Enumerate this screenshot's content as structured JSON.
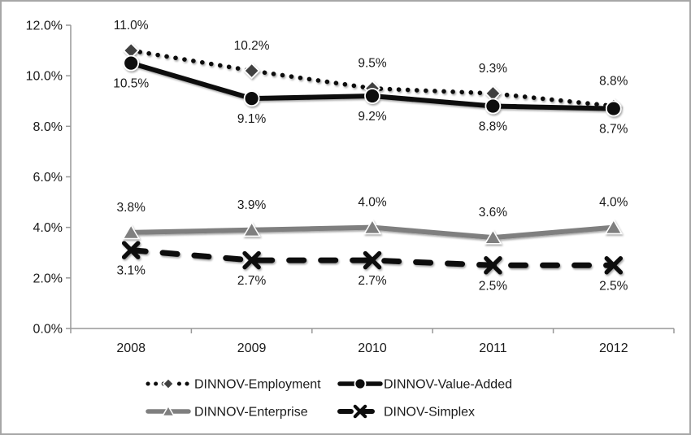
{
  "figure": {
    "background": "#ffffff",
    "border_color": "#a6a6a6",
    "axis_color": "#999999",
    "text_color": "#1a1a1a"
  },
  "chart_data": {
    "type": "line",
    "title": "",
    "xlabel": "",
    "ylabel": "",
    "grid": false,
    "categories": [
      "2008",
      "2009",
      "2010",
      "2011",
      "2012"
    ],
    "series": [
      {
        "name": "DINNOV-Employment",
        "values": [
          11.0,
          10.2,
          9.5,
          9.3,
          8.8
        ],
        "point_labels": [
          "11.0%",
          "10.2%",
          "9.5%",
          "9.3%",
          "8.8%"
        ],
        "label_position": "above",
        "color": "#0d0d0d",
        "line_style": "dotted",
        "marker": "diamond",
        "marker_color": "#404040"
      },
      {
        "name": "DINNOV-Value-Added",
        "values": [
          10.5,
          9.1,
          9.2,
          8.8,
          8.7
        ],
        "point_labels": [
          "10.5%",
          "9.1%",
          "9.2%",
          "8.8%",
          "8.7%"
        ],
        "label_position": "below",
        "color": "#0d0d0d",
        "line_style": "solid",
        "marker": "circle",
        "marker_color": "#0d0d0d"
      },
      {
        "name": "DINNOV-Enterprise",
        "values": [
          3.8,
          3.9,
          4.0,
          3.6,
          4.0
        ],
        "point_labels": [
          "3.8%",
          "3.9%",
          "4.0%",
          "3.6%",
          "4.0%"
        ],
        "label_position": "above",
        "color": "#7f7f7f",
        "line_style": "solid",
        "marker": "triangle",
        "marker_color": "#7f7f7f"
      },
      {
        "name": "DINOV-Simplex",
        "values": [
          3.1,
          2.7,
          2.7,
          2.5,
          2.5
        ],
        "point_labels": [
          "3.1%",
          "2.7%",
          "2.7%",
          "2.5%",
          "2.5%"
        ],
        "label_position": "below",
        "color": "#0d0d0d",
        "line_style": "dashed",
        "marker": "x",
        "marker_color": "#0d0d0d"
      }
    ],
    "y_axis": {
      "min": 0,
      "max": 12,
      "step": 2,
      "tick_labels": [
        "0.0%",
        "2.0%",
        "4.0%",
        "6.0%",
        "8.0%",
        "10.0%",
        "12.0%"
      ]
    },
    "x_axis": {
      "tick_labels": [
        "2008",
        "2009",
        "2010",
        "2011",
        "2012"
      ]
    },
    "legend": {
      "position": "bottom",
      "rows": [
        [
          "DINNOV-Employment",
          "DINNOV-Value-Added"
        ],
        [
          "DINNOV-Enterprise",
          "DINOV-Simplex"
        ]
      ]
    }
  }
}
